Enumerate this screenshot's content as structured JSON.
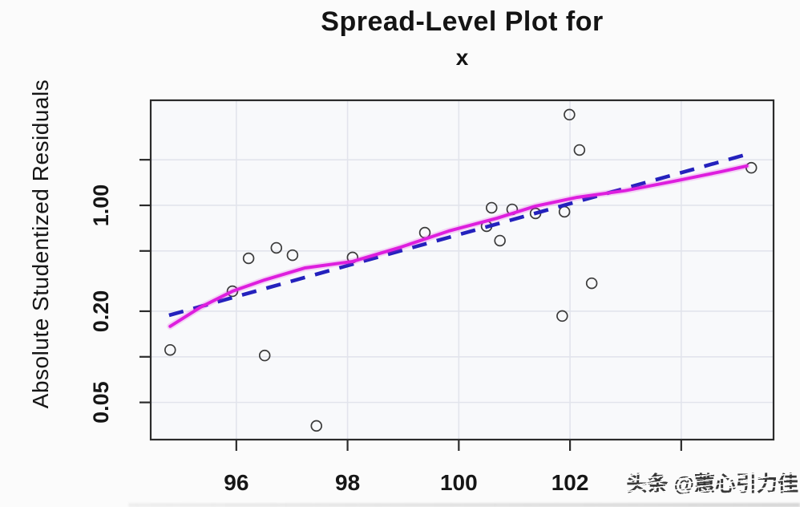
{
  "page": {
    "background": "#fbfbfb"
  },
  "chart_data": {
    "type": "scatter",
    "title": "Spread-Level Plot for",
    "subtitle": "x",
    "xlabel": "",
    "ylabel": "Absolute Studentized Residuals",
    "grid": true,
    "legend": "none",
    "x_axis": {
      "scale": "linear",
      "range": [
        94.46,
        105.66
      ],
      "ticks": [
        {
          "v": 96,
          "label": "96"
        },
        {
          "v": 98,
          "label": "98"
        },
        {
          "v": 100,
          "label": "100"
        },
        {
          "v": 102,
          "label": "102"
        },
        {
          "v": 104,
          "label": ""
        }
      ]
    },
    "y_axis": {
      "scale": "log",
      "range": [
        0.0284,
        4.94
      ],
      "ticks": [
        {
          "v": 2,
          "label": ""
        },
        {
          "v": 1,
          "label": "1.00"
        },
        {
          "v": 0.5,
          "label": ""
        },
        {
          "v": 0.2,
          "label": "0.20"
        },
        {
          "v": 0.1,
          "label": ""
        },
        {
          "v": 0.05,
          "label": "0.05"
        }
      ]
    },
    "points": [
      [
        94.81,
        0.111
      ],
      [
        95.93,
        0.271
      ],
      [
        96.22,
        0.447
      ],
      [
        96.51,
        0.102
      ],
      [
        96.72,
        0.524
      ],
      [
        97.01,
        0.469
      ],
      [
        97.44,
        0.035
      ],
      [
        98.09,
        0.453
      ],
      [
        99.39,
        0.66
      ],
      [
        100.5,
        0.728
      ],
      [
        100.59,
        0.964
      ],
      [
        100.74,
        0.585
      ],
      [
        100.96,
        0.941
      ],
      [
        101.38,
        0.885
      ],
      [
        101.86,
        0.186
      ],
      [
        101.9,
        0.907
      ],
      [
        101.99,
        3.97
      ],
      [
        102.17,
        2.32
      ],
      [
        102.39,
        0.306
      ],
      [
        105.26,
        1.77
      ]
    ],
    "lowess_line": {
      "name": "lowess-smooth",
      "style": "solid",
      "color": "#DE1EDE",
      "points": [
        [
          94.81,
          0.159
        ],
        [
          95.35,
          0.212
        ],
        [
          95.93,
          0.271
        ],
        [
          96.51,
          0.322
        ],
        [
          97.23,
          0.386
        ],
        [
          98.09,
          0.426
        ],
        [
          98.96,
          0.53
        ],
        [
          99.82,
          0.677
        ],
        [
          100.69,
          0.823
        ],
        [
          101.38,
          0.988
        ],
        [
          102.13,
          1.13
        ],
        [
          102.99,
          1.25
        ],
        [
          103.86,
          1.44
        ],
        [
          104.72,
          1.67
        ],
        [
          105.18,
          1.82
        ]
      ]
    },
    "fit_line": {
      "name": "power-transformation-fit",
      "style": "dashed",
      "color": "#2421BD",
      "points": [
        [
          94.79,
          0.188
        ],
        [
          105.16,
          2.16
        ]
      ]
    },
    "colors": {
      "point_stroke": "#3a3a3a",
      "grid": "#e2e4ec",
      "axis": "#2b2b2b",
      "text": "#161616",
      "plot_background": "#f8f9fb"
    }
  },
  "watermark": {
    "text": "头条 @蕙心引力佳",
    "color": "#3e3e3e"
  }
}
